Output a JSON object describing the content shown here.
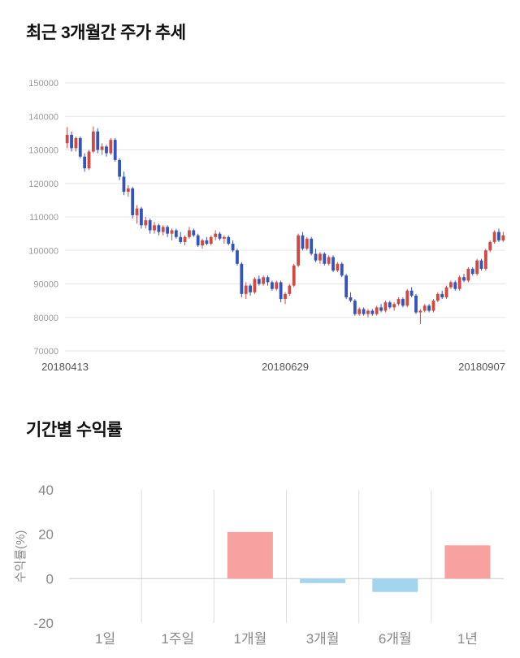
{
  "chart_data": [
    {
      "type": "candlestick",
      "title": "최근 3개월간 주가 추세",
      "ylim": [
        70000,
        150000
      ],
      "ytick_interval": 10000,
      "x_tick_labels": [
        "20180413",
        "20180629",
        "20180907"
      ],
      "up_color": "#cf4a42",
      "down_color": "#3355bb",
      "grid_color": "#e6e6e6",
      "ohlc": [
        [
          132000,
          136800,
          130500,
          134500
        ],
        [
          134500,
          135500,
          129500,
          130500
        ],
        [
          130500,
          134000,
          129500,
          133500
        ],
        [
          133500,
          134000,
          127500,
          128000
        ],
        [
          128000,
          129000,
          123500,
          124500
        ],
        [
          124500,
          130000,
          124000,
          129500
        ],
        [
          129500,
          137000,
          129000,
          135500
        ],
        [
          135500,
          136500,
          129000,
          130000
        ],
        [
          130000,
          132000,
          128500,
          131000
        ],
        [
          131000,
          131500,
          128000,
          129000
        ],
        [
          129000,
          133500,
          128500,
          133000
        ],
        [
          133000,
          133500,
          126500,
          127000
        ],
        [
          127000,
          127500,
          121000,
          122000
        ],
        [
          122000,
          123500,
          116500,
          117500
        ],
        [
          117500,
          119500,
          116000,
          118500
        ],
        [
          118500,
          119000,
          109500,
          110500
        ],
        [
          110500,
          113500,
          108000,
          112500
        ],
        [
          112500,
          113000,
          106500,
          107500
        ],
        [
          107500,
          110000,
          106500,
          109000
        ],
        [
          109000,
          109500,
          105000,
          106000
        ],
        [
          106000,
          108500,
          105000,
          107500
        ],
        [
          107500,
          108000,
          104500,
          105500
        ],
        [
          105500,
          107500,
          104500,
          107000
        ],
        [
          107000,
          107500,
          104000,
          105000
        ],
        [
          105000,
          106500,
          103000,
          106000
        ],
        [
          106000,
          106500,
          103500,
          104000
        ],
        [
          104000,
          105500,
          102000,
          102500
        ],
        [
          102500,
          104500,
          101500,
          104000
        ],
        [
          104000,
          107000,
          103500,
          106000
        ],
        [
          106000,
          106500,
          104000,
          104500
        ],
        [
          104500,
          105000,
          101000,
          101500
        ],
        [
          101500,
          103500,
          100500,
          103000
        ],
        [
          103000,
          104000,
          101500,
          102000
        ],
        [
          102000,
          104500,
          101500,
          104000
        ],
        [
          104000,
          106000,
          103000,
          105000
        ],
        [
          105000,
          105500,
          103000,
          103500
        ],
        [
          103500,
          104500,
          102000,
          104000
        ],
        [
          104000,
          104500,
          101500,
          102000
        ],
        [
          102000,
          103000,
          99500,
          100000
        ],
        [
          100000,
          100500,
          95500,
          96000
        ],
        [
          96000,
          96500,
          86000,
          87000
        ],
        [
          87000,
          90500,
          85500,
          89500
        ],
        [
          89500,
          90000,
          86500,
          87500
        ],
        [
          87500,
          92000,
          87000,
          91500
        ],
        [
          91500,
          92500,
          89500,
          90000
        ],
        [
          90000,
          92500,
          89500,
          92000
        ],
        [
          92000,
          92500,
          89500,
          90500
        ],
        [
          90500,
          91000,
          88000,
          88500
        ],
        [
          88500,
          91000,
          88000,
          90500
        ],
        [
          90500,
          91000,
          84500,
          85500
        ],
        [
          85500,
          87500,
          84000,
          87000
        ],
        [
          87000,
          90000,
          86500,
          89500
        ],
        [
          89500,
          96000,
          89000,
          95500
        ],
        [
          95500,
          105000,
          95000,
          104500
        ],
        [
          104500,
          105500,
          100000,
          100500
        ],
        [
          100500,
          104000,
          100000,
          103500
        ],
        [
          103500,
          104000,
          98500,
          99000
        ],
        [
          99000,
          100500,
          96500,
          97000
        ],
        [
          97000,
          99500,
          96000,
          99000
        ],
        [
          99000,
          99500,
          95500,
          96000
        ],
        [
          96000,
          98500,
          95500,
          98000
        ],
        [
          98000,
          98500,
          93500,
          94000
        ],
        [
          94000,
          96500,
          93500,
          96000
        ],
        [
          96000,
          96500,
          92000,
          92500
        ],
        [
          92500,
          93000,
          85500,
          86000
        ],
        [
          86000,
          87500,
          84500,
          85000
        ],
        [
          85000,
          85500,
          80500,
          81000
        ],
        [
          81000,
          83000,
          80500,
          82500
        ],
        [
          82500,
          83000,
          80500,
          81000
        ],
        [
          81000,
          82500,
          80000,
          82000
        ],
        [
          82000,
          82500,
          80500,
          81000
        ],
        [
          81000,
          83500,
          80500,
          83000
        ],
        [
          83000,
          84000,
          81500,
          82000
        ],
        [
          82000,
          85000,
          81500,
          84500
        ],
        [
          84500,
          85000,
          82500,
          83000
        ],
        [
          83000,
          84500,
          82000,
          84000
        ],
        [
          84000,
          86000,
          83500,
          85500
        ],
        [
          85500,
          86000,
          83000,
          83500
        ],
        [
          83500,
          88500,
          83000,
          88000
        ],
        [
          88000,
          89000,
          86000,
          86500
        ],
        [
          86500,
          87000,
          81000,
          81500
        ],
        [
          81500,
          82500,
          78000,
          82000
        ],
        [
          82000,
          84000,
          81500,
          83500
        ],
        [
          83500,
          84000,
          81500,
          82000
        ],
        [
          82000,
          85500,
          81500,
          85000
        ],
        [
          85000,
          87500,
          84500,
          87000
        ],
        [
          87000,
          88000,
          85500,
          86000
        ],
        [
          86000,
          89500,
          85500,
          89000
        ],
        [
          89000,
          91000,
          88500,
          90500
        ],
        [
          90500,
          91000,
          88000,
          88500
        ],
        [
          88500,
          92500,
          88000,
          92000
        ],
        [
          92000,
          93000,
          90500,
          91000
        ],
        [
          91000,
          95000,
          90500,
          94500
        ],
        [
          94500,
          95000,
          92500,
          93000
        ],
        [
          93000,
          97500,
          92500,
          97000
        ],
        [
          97000,
          97500,
          94000,
          94500
        ],
        [
          94500,
          100500,
          94000,
          100000
        ],
        [
          100000,
          103000,
          99500,
          102500
        ],
        [
          102500,
          106000,
          102000,
          105500
        ],
        [
          105500,
          106500,
          102500,
          103000
        ],
        [
          103000,
          105500,
          102500,
          104500
        ]
      ]
    },
    {
      "type": "bar",
      "title": "기간별 수익률",
      "ylabel": "수익률(%)",
      "categories": [
        "1일",
        "1주일",
        "1개월",
        "3개월",
        "6개월",
        "1년"
      ],
      "values": [
        0,
        0,
        21,
        -2,
        -6,
        15
      ],
      "ylim": [
        -20,
        40
      ],
      "yticks": [
        40,
        20,
        0,
        -20
      ],
      "positive_color": "#f7a1a1",
      "negative_color": "#a3d5ee",
      "grid_color": "#dddddd",
      "zero_line_color": "#cccccc"
    }
  ]
}
